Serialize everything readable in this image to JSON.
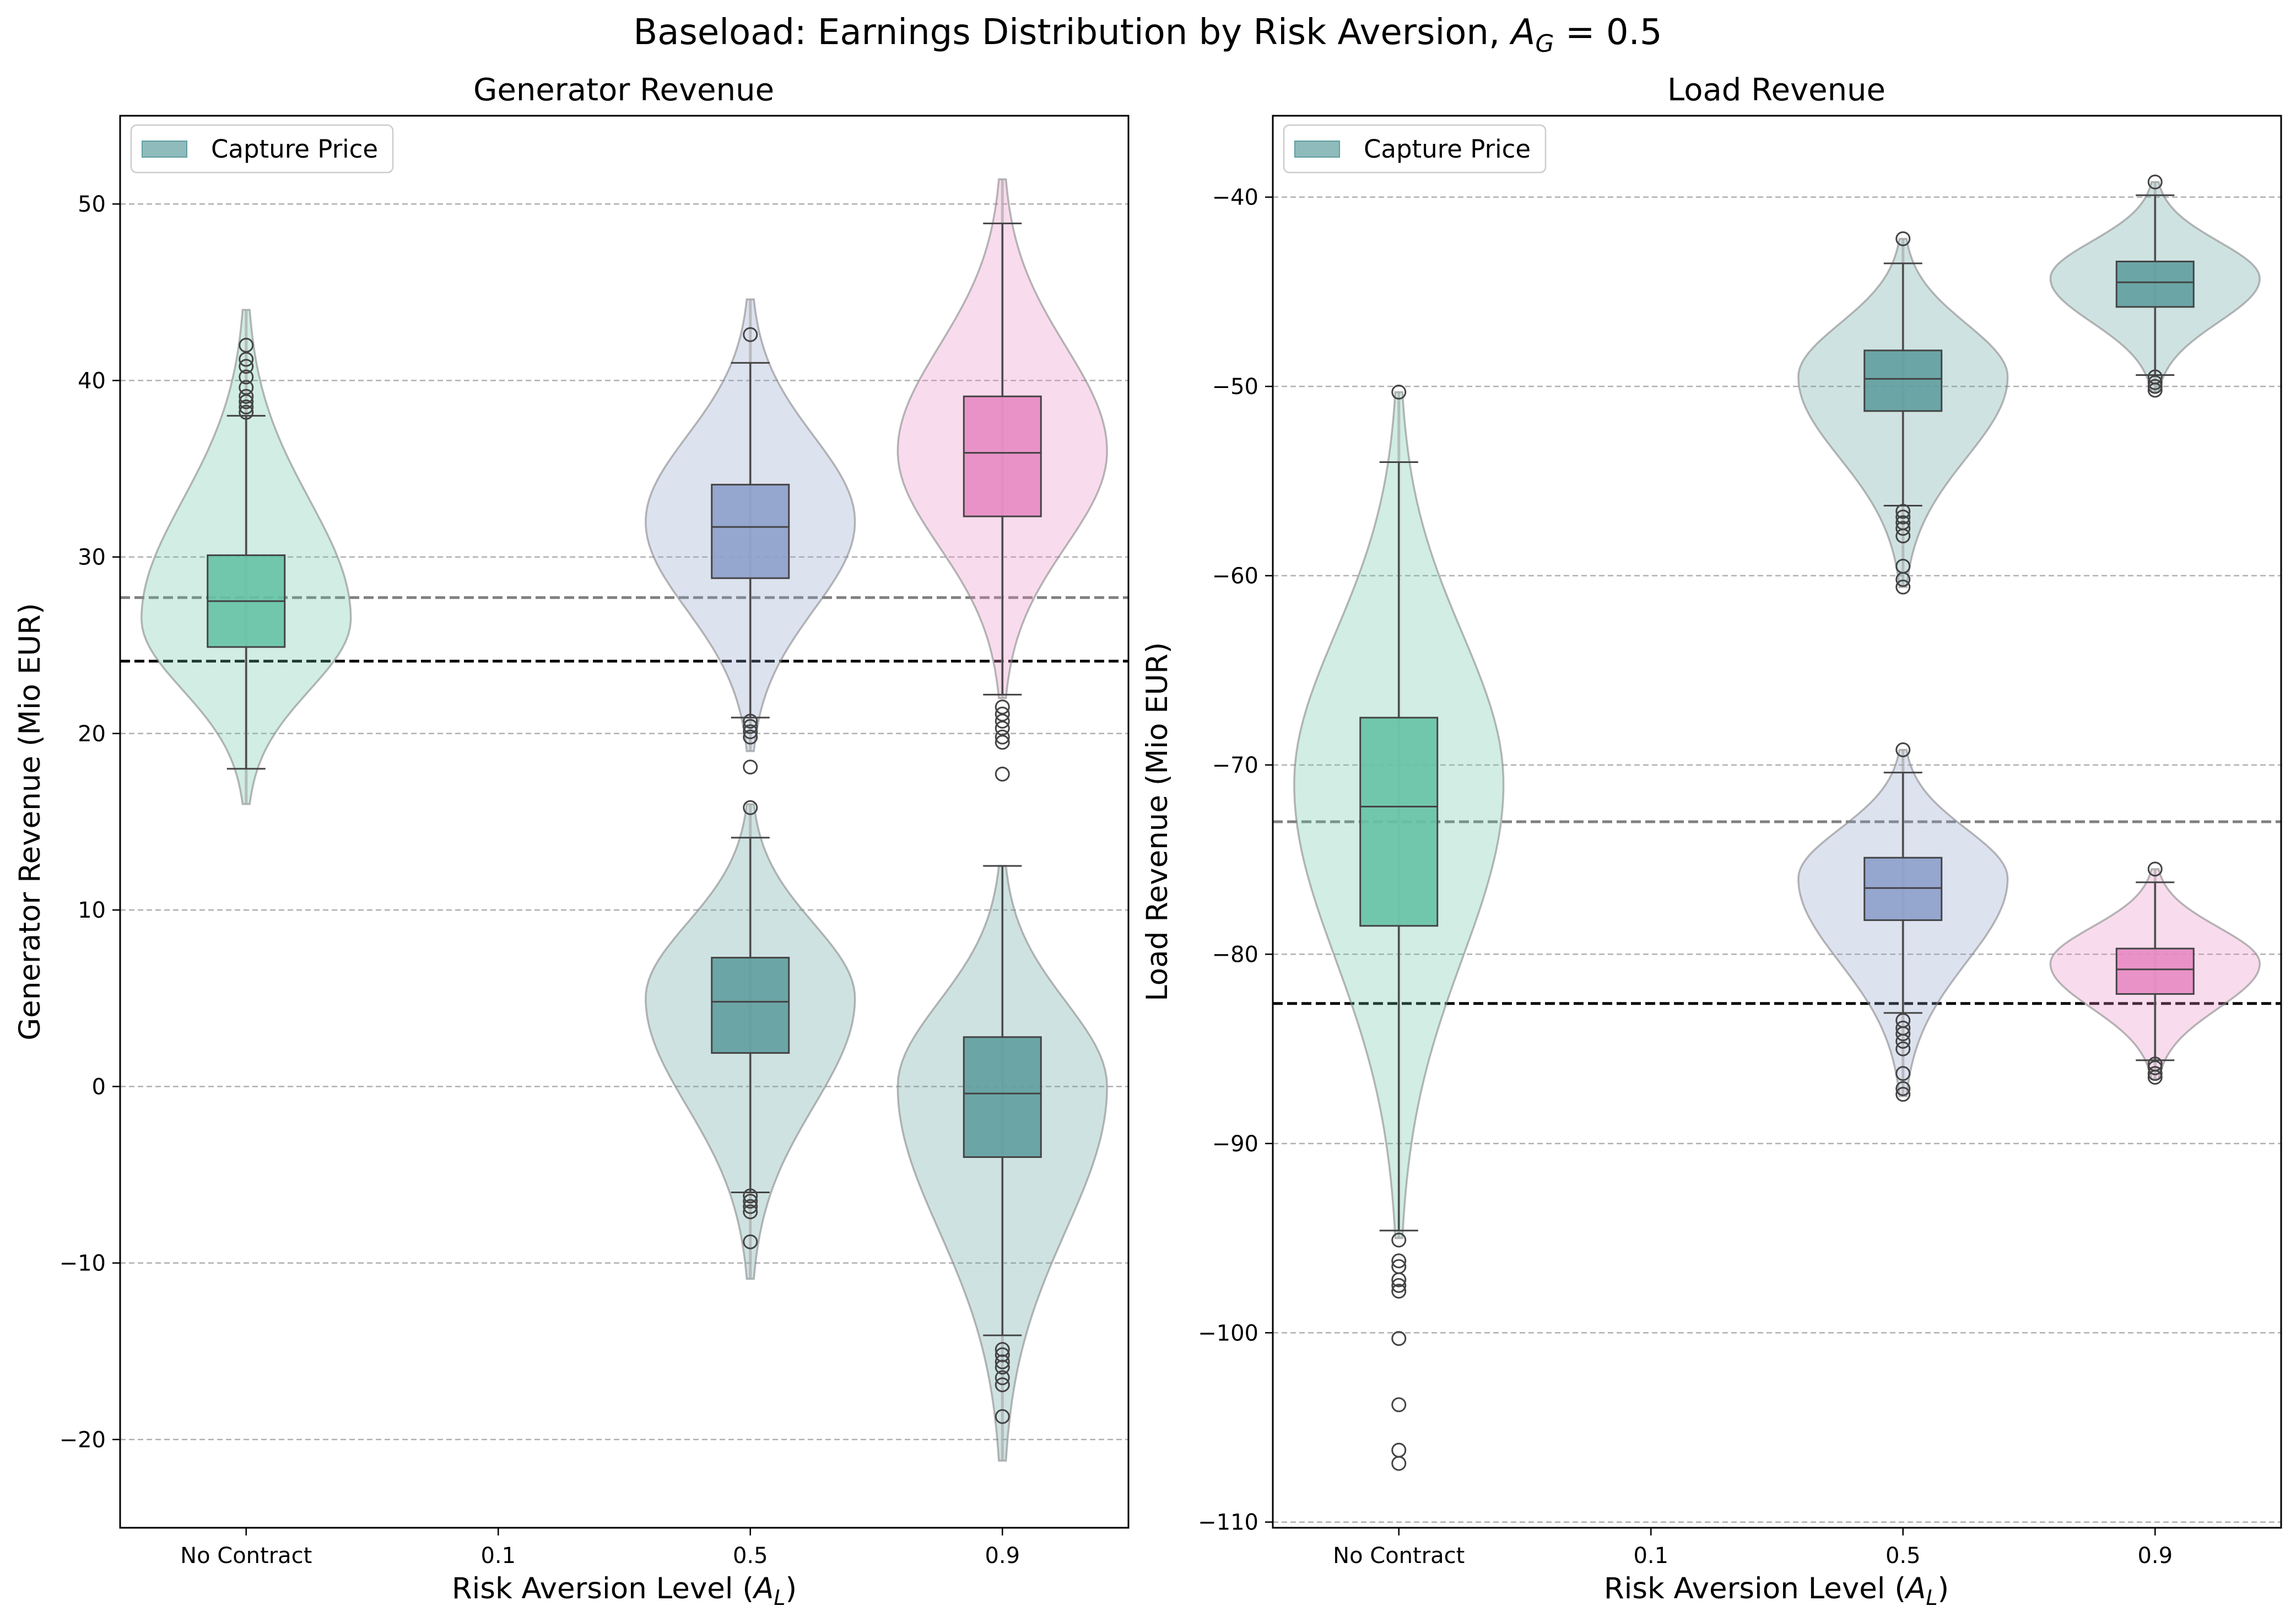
{
  "figure": {
    "title_main": "Baseload: Earnings Distribution by Risk Aversion, ",
    "title_sym": "A",
    "title_sub": "G",
    "title_tail": " = 0.5"
  },
  "colors": {
    "no_contract": "#66c2a5",
    "level_05": "#8da0cb",
    "level_09": "#e78ac3",
    "capture_price": "#5f9ea0",
    "grid": "#b0b0b0",
    "ref_gray": "#808080",
    "ref_black": "#000000"
  },
  "chart_data": [
    {
      "type": "violin",
      "title": "Generator Revenue",
      "xlabel_text": "Risk Aversion Level (",
      "xlabel_sym": "A",
      "xlabel_sub": "L",
      "xlabel_tail": ")",
      "ylabel": "Generator Revenue (Mio EUR)",
      "categories": [
        "No Contract",
        "0.1",
        "0.5",
        "0.9"
      ],
      "ylim": [
        -25,
        55
      ],
      "yticks": [
        -20,
        -10,
        0,
        10,
        20,
        30,
        40,
        50
      ],
      "ytick_labels": [
        "−20",
        "−10",
        "0",
        "10",
        "20",
        "30",
        "40",
        "50"
      ],
      "grid": "horizontal dashed",
      "legend": {
        "position": "top-left",
        "entries": [
          "Capture Price"
        ]
      },
      "reference_lines": [
        {
          "style": "gray dashed",
          "y": 27.7
        },
        {
          "style": "black dashed",
          "y": 24.1
        }
      ],
      "series": [
        {
          "category": "No Contract",
          "group": "base",
          "color_key": "no_contract",
          "kde_range": [
            16,
            44
          ],
          "peak_y": 26.5,
          "whisker_low": 18,
          "q1": 24.9,
          "median": 27.5,
          "q3": 30.1,
          "whisker_high": 38,
          "outliers": [
            38.2,
            38.5,
            38.8,
            39.1,
            39.6,
            40.2,
            40.8,
            41.2,
            42.0
          ]
        },
        {
          "category": "0.5",
          "group": "base",
          "color_key": "level_05",
          "kde_range": [
            19,
            44.6
          ],
          "peak_y": 32,
          "whisker_low": 20.9,
          "q1": 28.8,
          "median": 31.7,
          "q3": 34.1,
          "whisker_high": 41,
          "outliers": [
            15.8,
            18.1,
            19.8,
            20.1,
            20.4,
            20.7,
            42.6
          ]
        },
        {
          "category": "0.9",
          "group": "base",
          "color_key": "level_09",
          "kde_range": [
            22,
            51.4
          ],
          "peak_y": 36,
          "whisker_low": 22.2,
          "q1": 32.3,
          "median": 35.9,
          "q3": 39.1,
          "whisker_high": 48.9,
          "outliers": [
            17.7,
            19.5,
            19.8,
            20.3,
            20.7,
            21.1,
            21.5
          ]
        },
        {
          "category": "0.5",
          "group": "Capture Price",
          "color_key": "capture_price",
          "kde_range": [
            -10.9,
            16
          ],
          "peak_y": 5,
          "whisker_low": -6,
          "q1": 1.9,
          "median": 4.8,
          "q3": 7.3,
          "whisker_high": 14.1,
          "outliers": [
            -8.8,
            -7.1,
            -6.8,
            -6.5,
            -6.2
          ]
        },
        {
          "category": "0.9",
          "group": "Capture Price",
          "color_key": "capture_price",
          "kde_range": [
            -21.2,
            12.5
          ],
          "peak_y": 0,
          "whisker_low": -14.1,
          "q1": -4,
          "median": -0.4,
          "q3": 2.8,
          "whisker_high": 12.5,
          "outliers": [
            -18.7,
            -16.9,
            -16.5,
            -15.9,
            -15.6,
            -15.2,
            -14.9
          ]
        }
      ]
    },
    {
      "type": "violin",
      "title": "Load Revenue",
      "xlabel_text": "Risk Aversion Level (",
      "xlabel_sym": "A",
      "xlabel_sub": "L",
      "xlabel_tail": ")",
      "ylabel": "Load Revenue (Mio EUR)",
      "categories": [
        "No Contract",
        "0.1",
        "0.5",
        "0.9"
      ],
      "ylim": [
        -110.3,
        -35.7
      ],
      "yticks": [
        -110,
        -100,
        -90,
        -80,
        -70,
        -60,
        -50,
        -40
      ],
      "ytick_labels": [
        "−110",
        "−100",
        "−90",
        "−80",
        "−70",
        "−60",
        "−50",
        "−40"
      ],
      "grid": "horizontal dashed",
      "legend": {
        "position": "top-left",
        "entries": [
          "Capture Price"
        ]
      },
      "reference_lines": [
        {
          "style": "gray dashed",
          "y": -73
        },
        {
          "style": "black dashed",
          "y": -82.6
        }
      ],
      "series": [
        {
          "category": "No Contract",
          "group": "base",
          "color_key": "no_contract",
          "kde_range": [
            -95,
            -50.3
          ],
          "peak_y": -71,
          "whisker_low": -94.6,
          "q1": -78.5,
          "median": -72.2,
          "q3": -67.5,
          "whisker_high": -54,
          "outliers": [
            -95.1,
            -96.2,
            -96.5,
            -97.2,
            -97.5,
            -97.8,
            -100.3,
            -103.8,
            -106.2,
            -106.9,
            -50.3
          ]
        },
        {
          "category": "0.5",
          "group": "base",
          "color_key": "level_05",
          "kde_range": [
            -87.5,
            -69.2
          ],
          "peak_y": -76,
          "whisker_low": -83.1,
          "q1": -78.2,
          "median": -76.5,
          "q3": -74.9,
          "whisker_high": -70.4,
          "outliers": [
            -69.2,
            -83.5,
            -83.9,
            -84.2,
            -84.6,
            -85.0,
            -86.3,
            -87.1,
            -87.4
          ]
        },
        {
          "category": "0.9",
          "group": "base",
          "color_key": "level_09",
          "kde_range": [
            -86.6,
            -75.5
          ],
          "peak_y": -80.5,
          "whisker_low": -85.6,
          "q1": -82.1,
          "median": -80.8,
          "q3": -79.7,
          "whisker_high": -76.2,
          "outliers": [
            -75.5,
            -85.8,
            -86.0,
            -86.3,
            -86.5
          ]
        },
        {
          "category": "0.5",
          "group": "Capture Price",
          "color_key": "capture_price",
          "kde_range": [
            -60.6,
            -42.2
          ],
          "peak_y": -49.5,
          "whisker_low": -56.3,
          "q1": -51.3,
          "median": -49.6,
          "q3": -48.1,
          "whisker_high": -43.5,
          "outliers": [
            -42.2,
            -56.6,
            -56.9,
            -57.2,
            -57.5,
            -57.9,
            -59.5,
            -60.2,
            -60.6
          ]
        },
        {
          "category": "0.9",
          "group": "Capture Price",
          "color_key": "capture_price",
          "kde_range": [
            -50.3,
            -39.2
          ],
          "peak_y": -44.3,
          "whisker_low": -49.4,
          "q1": -45.8,
          "median": -44.5,
          "q3": -43.4,
          "whisker_high": -39.9,
          "outliers": [
            -39.2,
            -49.5,
            -49.8,
            -50.0,
            -50.2
          ]
        }
      ]
    }
  ]
}
